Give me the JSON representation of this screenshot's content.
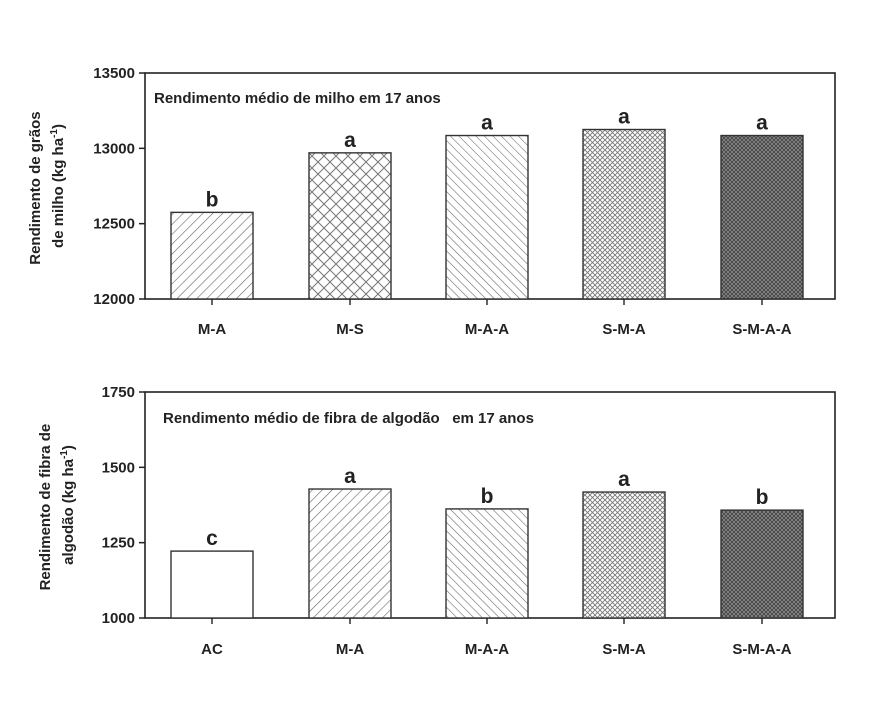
{
  "chart_data": [
    {
      "type": "bar",
      "title": "Rendimento médio de milho em 17 anos",
      "ylabel_lines": [
        "Rendimento de grãos",
        "de milho (kg ha",
        "-1",
        ")"
      ],
      "ylim": [
        12000,
        13500
      ],
      "yticks": [
        12000,
        12500,
        13000,
        13500
      ],
      "categories": [
        "M-A",
        "M-S",
        "M-A-A",
        "S-M-A",
        "S-M-A-A"
      ],
      "values": [
        12575,
        12970,
        13085,
        13125,
        13085
      ],
      "significance_letters": [
        "b",
        "a",
        "a",
        "a",
        "a"
      ],
      "patterns": [
        "diag-right",
        "crosshatch",
        "diag-left",
        "crosshatch-fine",
        "crosshatch-dense"
      ],
      "grid": false,
      "legend": "none"
    },
    {
      "type": "bar",
      "title": "Rendimento médio de fibra de algodão   em 17 anos",
      "ylabel_lines": [
        "Rendimento de fibra de",
        "algodão (kg ha",
        "-1",
        ")"
      ],
      "ylim": [
        1000,
        1750
      ],
      "yticks": [
        1000,
        1250,
        1500,
        1750
      ],
      "categories": [
        "AC",
        "M-A",
        "M-A-A",
        "S-M-A",
        "S-M-A-A"
      ],
      "values": [
        1222,
        1428,
        1362,
        1418,
        1358
      ],
      "significance_letters": [
        "c",
        "a",
        "b",
        "a",
        "b"
      ],
      "patterns": [
        "none",
        "diag-right",
        "diag-left",
        "crosshatch-fine",
        "crosshatch-dense"
      ],
      "grid": false,
      "legend": "none"
    }
  ],
  "colors": {
    "axis": "#222222",
    "bar_stroke": "#333333",
    "hatch": "#555555",
    "dense_fill": "#4a4a4a"
  }
}
